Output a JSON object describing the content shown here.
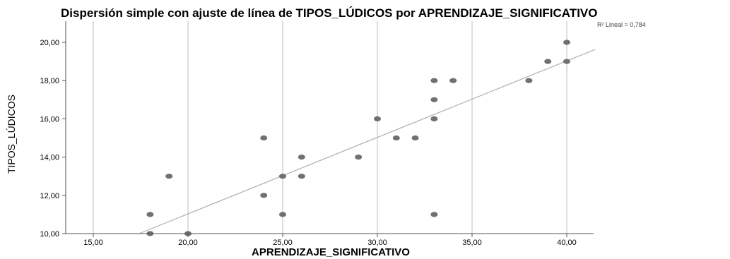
{
  "chart_data": {
    "type": "scatter",
    "title": "Dispersión simple con ajuste de línea de TIPOS_LÚDICOS por APRENDIZAJE_SIGNIFICATIVO",
    "xlabel": "APRENDIZAJE_SIGNIFICATIVO",
    "ylabel": "TIPOS_LÚDICOS",
    "xlim": [
      13,
      41.5
    ],
    "ylim": [
      10,
      21
    ],
    "x_ticks": [
      "15,00",
      "20,00",
      "25,00",
      "30,00",
      "35,00",
      "40,00"
    ],
    "y_ticks": [
      "10,00",
      "12,00",
      "14,00",
      "16,00",
      "18,00",
      "20,00"
    ],
    "x_tick_values": [
      15,
      20,
      25,
      30,
      35,
      40
    ],
    "y_tick_values": [
      10,
      12,
      14,
      16,
      18,
      20
    ],
    "grid": "vertical",
    "r2_label": "R² Lineal = 0,784",
    "fit_line": {
      "slope": 0.4,
      "intercept": 3.03
    },
    "points": [
      [
        18,
        10
      ],
      [
        18,
        11
      ],
      [
        19,
        13
      ],
      [
        20,
        10
      ],
      [
        24,
        15
      ],
      [
        24,
        12
      ],
      [
        25,
        13
      ],
      [
        25,
        11
      ],
      [
        26,
        14
      ],
      [
        26,
        13
      ],
      [
        29,
        14
      ],
      [
        30,
        16
      ],
      [
        31,
        15
      ],
      [
        32,
        15
      ],
      [
        33,
        18
      ],
      [
        33,
        17
      ],
      [
        33,
        16
      ],
      [
        33,
        11
      ],
      [
        34,
        18
      ],
      [
        38,
        18
      ],
      [
        39,
        19
      ],
      [
        40,
        20
      ],
      [
        40,
        19
      ]
    ]
  }
}
